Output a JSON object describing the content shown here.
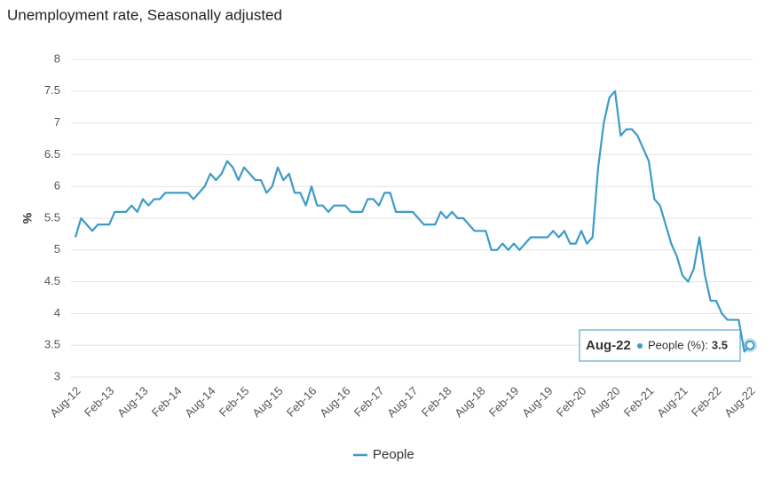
{
  "chart_data": {
    "type": "line",
    "title": "Unemployment rate, Seasonally adjusted",
    "y_label": "%",
    "categories": [
      "Aug-12",
      null,
      null,
      null,
      null,
      null,
      "Feb-13",
      null,
      null,
      null,
      null,
      null,
      "Aug-13",
      null,
      null,
      null,
      null,
      null,
      "Feb-14",
      null,
      null,
      null,
      null,
      null,
      "Aug-14",
      null,
      null,
      null,
      null,
      null,
      "Feb-15",
      null,
      null,
      null,
      null,
      null,
      "Aug-15",
      null,
      null,
      null,
      null,
      null,
      "Feb-16",
      null,
      null,
      null,
      null,
      null,
      "Aug-16",
      null,
      null,
      null,
      null,
      null,
      "Feb-17",
      null,
      null,
      null,
      null,
      null,
      "Aug-17",
      null,
      null,
      null,
      null,
      null,
      "Feb-18",
      null,
      null,
      null,
      null,
      null,
      "Aug-18",
      null,
      null,
      null,
      null,
      null,
      "Feb-19",
      null,
      null,
      null,
      null,
      null,
      "Aug-19",
      null,
      null,
      null,
      null,
      null,
      "Feb-20",
      null,
      null,
      null,
      null,
      null,
      "Aug-20",
      null,
      null,
      null,
      null,
      null,
      "Feb-21",
      null,
      null,
      null,
      null,
      null,
      "Aug-21",
      null,
      null,
      null,
      null,
      null,
      "Feb-22",
      null,
      null,
      null,
      null,
      null,
      "Aug-22"
    ],
    "series": [
      {
        "name": "People",
        "color": "#3d9bc7",
        "values": [
          5.2,
          5.5,
          5.4,
          5.3,
          5.4,
          5.4,
          5.4,
          5.6,
          5.6,
          5.6,
          5.7,
          5.6,
          5.8,
          5.7,
          5.8,
          5.8,
          5.9,
          5.9,
          5.9,
          5.9,
          5.9,
          5.8,
          5.9,
          6.0,
          6.2,
          6.1,
          6.2,
          6.4,
          6.3,
          6.1,
          6.3,
          6.2,
          6.1,
          6.1,
          5.9,
          6.0,
          6.3,
          6.1,
          6.2,
          5.9,
          5.9,
          5.7,
          6.0,
          5.7,
          5.7,
          5.6,
          5.7,
          5.7,
          5.7,
          5.6,
          5.6,
          5.6,
          5.8,
          5.8,
          5.7,
          5.9,
          5.9,
          5.6,
          5.6,
          5.6,
          5.6,
          5.5,
          5.4,
          5.4,
          5.4,
          5.6,
          5.5,
          5.6,
          5.5,
          5.5,
          5.4,
          5.3,
          5.3,
          5.3,
          5.0,
          5.0,
          5.1,
          5.0,
          5.1,
          5.0,
          5.1,
          5.2,
          5.2,
          5.2,
          5.2,
          5.3,
          5.2,
          5.3,
          5.1,
          5.1,
          5.3,
          5.1,
          5.2,
          6.3,
          7.0,
          7.4,
          7.5,
          6.8,
          6.9,
          6.9,
          6.8,
          6.6,
          6.4,
          5.8,
          5.7,
          5.4,
          5.1,
          4.9,
          4.6,
          4.5,
          4.7,
          5.2,
          4.6,
          4.2,
          4.2,
          4.0,
          3.9,
          3.9,
          3.9,
          3.4,
          3.5
        ]
      }
    ],
    "ylim": [
      3,
      8
    ],
    "yticks": [
      3,
      3.5,
      4,
      4.5,
      5,
      5.5,
      6,
      6.5,
      7,
      7.5,
      8
    ],
    "grid": true,
    "legend": "bottom",
    "tooltip": {
      "series_label": "People (%):"
    }
  }
}
